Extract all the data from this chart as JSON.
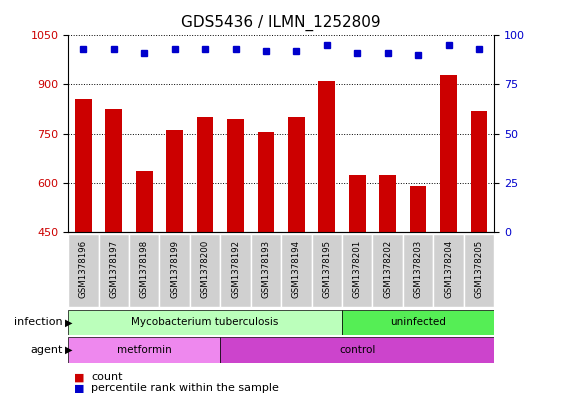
{
  "title": "GDS5436 / ILMN_1252809",
  "samples": [
    "GSM1378196",
    "GSM1378197",
    "GSM1378198",
    "GSM1378199",
    "GSM1378200",
    "GSM1378192",
    "GSM1378193",
    "GSM1378194",
    "GSM1378195",
    "GSM1378201",
    "GSM1378202",
    "GSM1378203",
    "GSM1378204",
    "GSM1378205"
  ],
  "counts": [
    855,
    825,
    635,
    760,
    800,
    795,
    755,
    800,
    910,
    625,
    625,
    590,
    930,
    820
  ],
  "percentiles": [
    93,
    93,
    91,
    93,
    93,
    93,
    92,
    92,
    95,
    91,
    91,
    90,
    95,
    93
  ],
  "ylim_left": [
    450,
    1050
  ],
  "ylim_right": [
    0,
    100
  ],
  "yticks_left": [
    450,
    600,
    750,
    900,
    1050
  ],
  "yticks_right": [
    0,
    25,
    50,
    75,
    100
  ],
  "bar_color": "#cc0000",
  "dot_color": "#0000cc",
  "background_color": "#ffffff",
  "infection_groups": [
    {
      "label": "Mycobacterium tuberculosis",
      "start": 0,
      "end": 9,
      "color": "#bbffbb"
    },
    {
      "label": "uninfected",
      "start": 9,
      "end": 14,
      "color": "#55ee55"
    }
  ],
  "agent_groups": [
    {
      "label": "metformin",
      "start": 0,
      "end": 5,
      "color": "#ee88ee"
    },
    {
      "label": "control",
      "start": 5,
      "end": 14,
      "color": "#cc44cc"
    }
  ],
  "infection_label": "infection",
  "agent_label": "agent",
  "legend_count_label": "count",
  "legend_percentile_label": "percentile rank within the sample",
  "title_fontsize": 11,
  "label_fontsize": 9,
  "tick_fontsize": 8
}
